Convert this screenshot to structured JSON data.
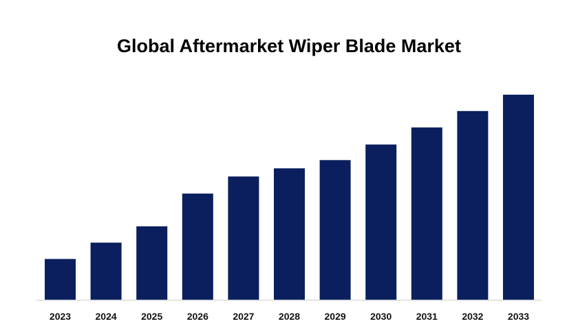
{
  "chart_data": {
    "type": "bar",
    "title": "Global Aftermarket Wiper Blade Market",
    "xlabel": "",
    "ylabel": "",
    "categories": [
      "2023",
      "2024",
      "2025",
      "2026",
      "2027",
      "2028",
      "2029",
      "2030",
      "2031",
      "2032",
      "2033"
    ],
    "values": [
      55,
      77,
      99,
      143,
      166,
      177,
      188,
      209,
      232,
      254,
      276
    ],
    "ylim": [
      0,
      300
    ],
    "grid": false,
    "legend": "none",
    "colors": {
      "bar": "#0b1f5e",
      "axis": "#d9d9d9"
    }
  }
}
